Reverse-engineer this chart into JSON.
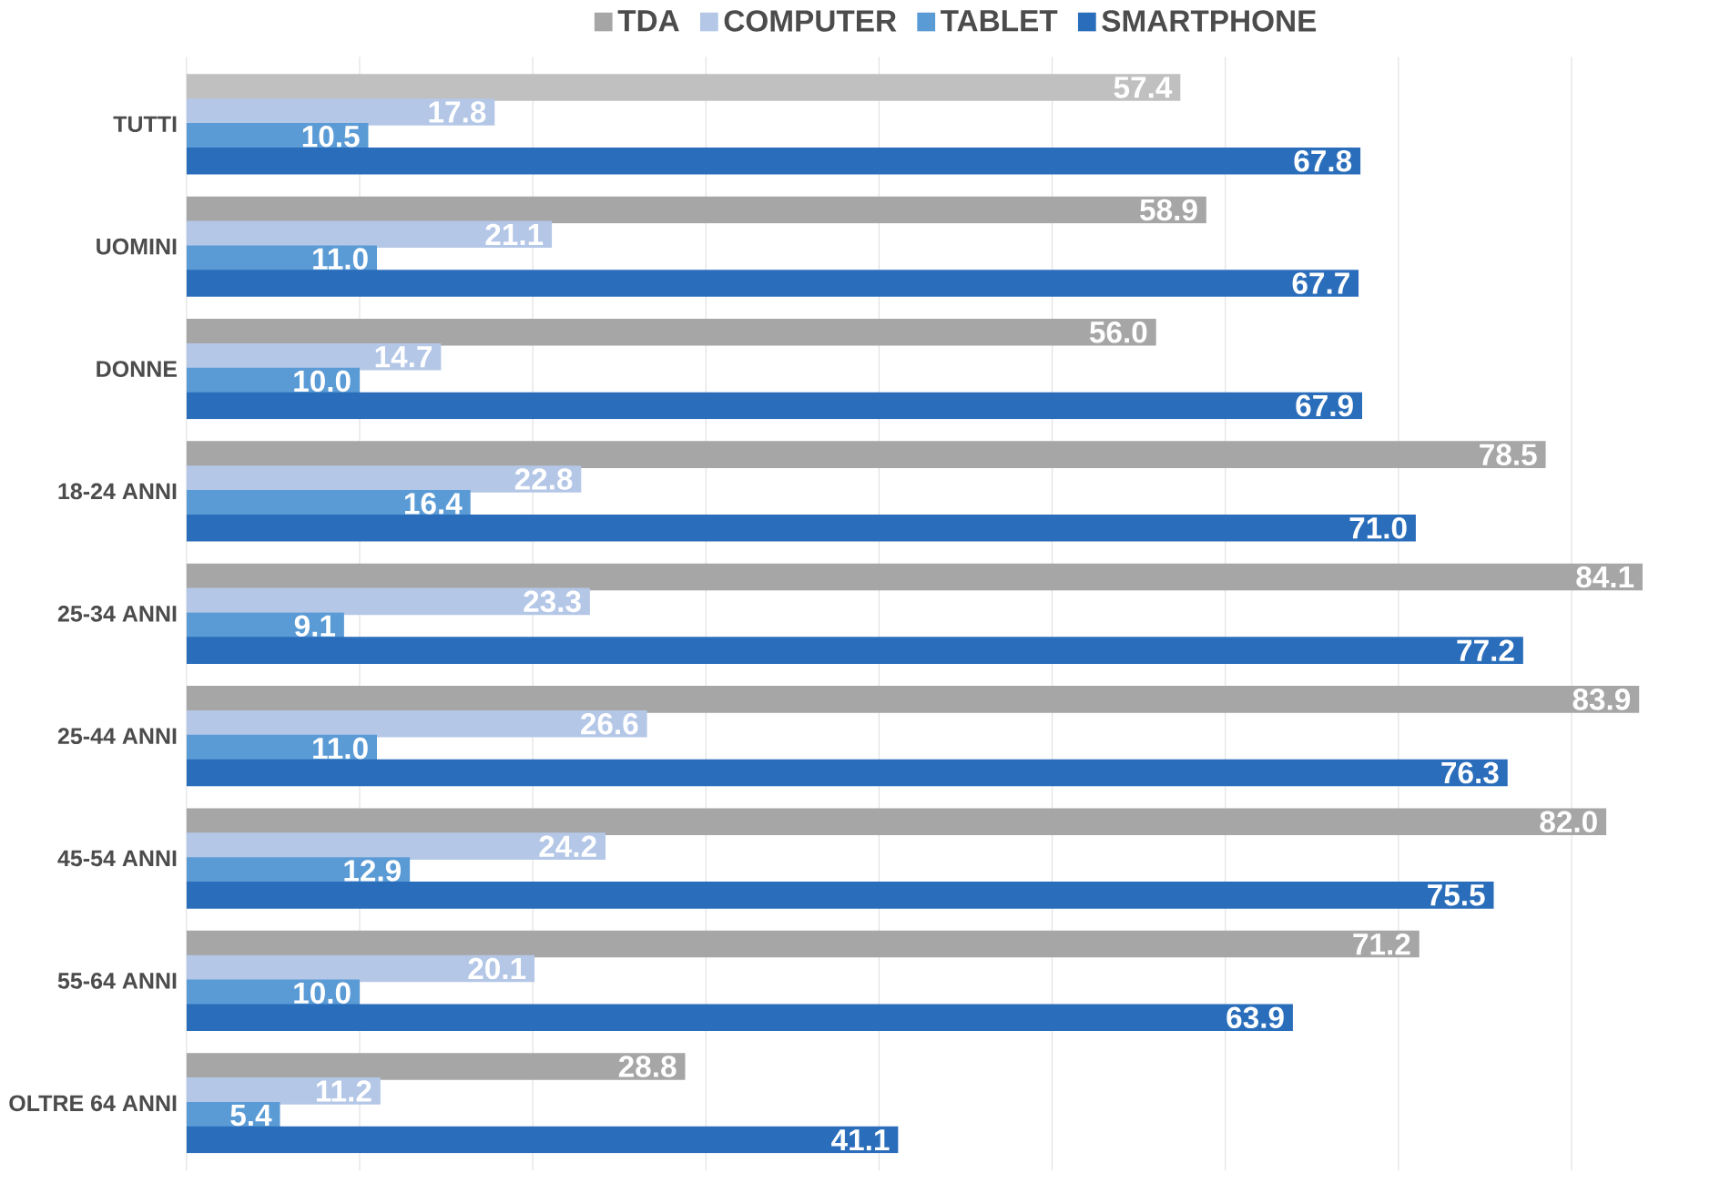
{
  "chart_data": {
    "type": "bar",
    "orientation": "horizontal",
    "categories": [
      "TUTTI",
      "UOMINI",
      "DONNE",
      "18-24 ANNI",
      "25-34 ANNI",
      "25-44 ANNI",
      "45-54 ANNI",
      "55-64 ANNI",
      "OLTRE 64 ANNI"
    ],
    "series": [
      {
        "name": "TDA",
        "color": "#a6a6a6",
        "colors": [
          "#c0c0c0",
          "#a6a6a6",
          "#a6a6a6",
          "#a6a6a6",
          "#a6a6a6",
          "#a6a6a6",
          "#a6a6a6",
          "#a6a6a6",
          "#a6a6a6"
        ],
        "values": [
          57.4,
          58.9,
          56.0,
          78.5,
          84.1,
          83.9,
          82.0,
          71.2,
          28.8
        ],
        "value_labels": [
          "57.4",
          "58.9",
          "56.0",
          "78.5",
          "84.1",
          "83.9",
          "82.0",
          "71.2",
          "28.8"
        ]
      },
      {
        "name": "COMPUTER",
        "color": "#b4c7e7",
        "values": [
          17.8,
          21.1,
          14.7,
          22.8,
          23.3,
          26.6,
          24.2,
          20.1,
          11.2
        ],
        "value_labels": [
          "17.8",
          "21.1",
          "14.7",
          "22.8",
          "23.3",
          "26.6",
          "24.2",
          "20.1",
          "11.2"
        ]
      },
      {
        "name": "TABLET",
        "color": "#5b9bd5",
        "values": [
          10.5,
          11.0,
          10.0,
          16.4,
          9.1,
          11.0,
          12.9,
          10.0,
          5.4
        ],
        "value_labels": [
          "10.5",
          "11.0",
          "10.0",
          "16.4",
          "9.1",
          "11.0",
          "12.9",
          "10.0",
          "5.4"
        ]
      },
      {
        "name": "SMARTPHONE",
        "color": "#2a6ebb",
        "values": [
          67.8,
          67.7,
          67.9,
          71.0,
          77.2,
          76.3,
          75.5,
          63.9,
          41.1
        ],
        "value_labels": [
          "67.8",
          "67.7",
          "67.9",
          "71.0",
          "77.2",
          "76.3",
          "75.5",
          "63.9",
          "41.1"
        ]
      }
    ],
    "tick_labels": "y",
    "grid": "x",
    "legend": "top"
  }
}
